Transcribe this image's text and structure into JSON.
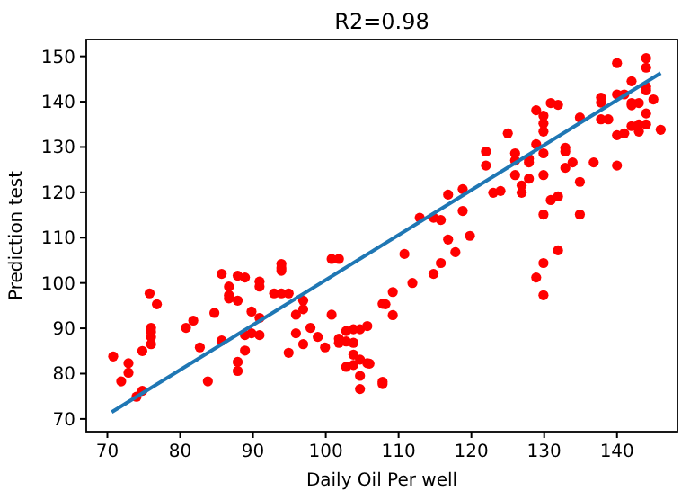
{
  "chart_data": {
    "type": "scatter",
    "title": "R2=0.98",
    "xlabel": "Daily Oil Per well",
    "ylabel": "Prediction test",
    "xlim": [
      67.1,
      148.3
    ],
    "ylim": [
      67.2,
      153.7
    ],
    "xticks": [
      70,
      80,
      90,
      100,
      110,
      120,
      130,
      140
    ],
    "yticks": [
      70,
      80,
      90,
      100,
      110,
      120,
      130,
      140,
      150
    ],
    "marker": "circle",
    "series": [
      {
        "color": "#ff0000",
        "x": [
          70.8,
          71.9,
          72.9,
          72.9,
          74,
          74.8,
          74.8,
          75.8,
          76,
          76,
          76,
          76,
          76.8,
          80.8,
          81.8,
          82.7,
          83.8,
          84.7,
          85.7,
          85.7,
          86.7,
          86.7,
          86.7,
          87.9,
          87.9,
          87.9,
          87.9,
          88.9,
          88.9,
          88.9,
          89.8,
          89.8,
          90.9,
          90.9,
          90.9,
          90.9,
          92.9,
          93.9,
          94.9,
          93.9,
          93.9,
          93.9,
          94.9,
          95.9,
          95.9,
          96.9,
          96.9,
          96.9,
          97.9,
          98.9,
          99.9,
          100.8,
          101.8,
          100.8,
          101.8,
          101.8,
          102.8,
          102.8,
          102.8,
          103.8,
          103.8,
          103.8,
          103.8,
          104.7,
          104.7,
          104.7,
          104.7,
          105.7,
          105.7,
          106,
          107.8,
          107.8,
          107.8,
          108.2,
          109.2,
          109.2,
          110.8,
          111.9,
          114.8,
          115.8,
          116.8,
          117.8,
          119.8,
          128.9,
          129.9,
          129.9,
          131.9,
          112.9,
          114.8,
          115.8,
          116.8,
          118.8,
          118.8,
          122,
          122,
          123,
          124,
          125,
          126,
          126,
          126,
          126.9,
          126.9,
          127.9,
          127.9,
          127.9,
          128.9,
          128.9,
          129.9,
          129.9,
          129.9,
          129.9,
          129.9,
          129.9,
          130.9,
          131.9,
          130.9,
          131.9,
          132.9,
          132.9,
          132.9,
          133.9,
          134.9,
          134.9,
          134.9,
          136.8,
          137.8,
          137.8,
          137.8,
          138.8,
          140,
          140,
          140,
          140,
          141,
          141,
          142,
          142,
          142,
          142,
          143,
          143,
          143,
          144,
          144,
          144,
          144,
          144,
          144,
          145,
          146
        ],
        "values": [
          83.8,
          78.3,
          82.3,
          80.2,
          74.9,
          76.2,
          85,
          97.7,
          90.1,
          89.2,
          88.1,
          86.5,
          95.3,
          90.1,
          91.7,
          85.8,
          78.3,
          93.4,
          102,
          87.3,
          99.2,
          97.3,
          96.6,
          101.6,
          96.1,
          82.6,
          80.6,
          101.2,
          88.5,
          85.1,
          93.7,
          88.9,
          100.3,
          99.2,
          92.3,
          88.5,
          97.7,
          97.7,
          97.7,
          104.2,
          103.3,
          102.7,
          84.6,
          93,
          88.9,
          96.1,
          94.2,
          86.5,
          90.1,
          88.1,
          85.8,
          105.3,
          105.3,
          93,
          87.7,
          86.8,
          89.4,
          87.1,
          81.5,
          89.8,
          86.8,
          84.2,
          81.9,
          89.8,
          83.1,
          79.5,
          76.6,
          90.5,
          82.3,
          82.2,
          95.4,
          78.2,
          77.7,
          95.3,
          98,
          92.9,
          106.4,
          100,
          102,
          104.4,
          109.6,
          106.8,
          110.4,
          101.2,
          104.4,
          97.3,
          107.2,
          114.4,
          114.4,
          113.9,
          119.5,
          120.7,
          115.9,
          129,
          125.9,
          119.9,
          120.3,
          133,
          128.6,
          127,
          123.8,
          121.5,
          119.9,
          127.4,
          126.6,
          123,
          138.1,
          130.6,
          136.9,
          135.2,
          133.4,
          128.6,
          123.8,
          115.1,
          139.7,
          139.3,
          118.3,
          119.1,
          129.8,
          129,
          125.4,
          126.6,
          136.5,
          122.3,
          115.1,
          126.6,
          140.9,
          139.8,
          136.1,
          136.1,
          148.5,
          141.6,
          132.6,
          125.9,
          141.6,
          133,
          144.5,
          139.7,
          139.2,
          134.6,
          139.7,
          135,
          133.4,
          149.6,
          147.5,
          143.3,
          142.5,
          137.4,
          135,
          140.5,
          133.8
        ]
      },
      {
        "type": "line",
        "color": "#1f77b4",
        "x": [
          70.6,
          146
        ],
        "values": [
          71.5,
          146.3
        ],
        "marker": "none"
      }
    ]
  }
}
